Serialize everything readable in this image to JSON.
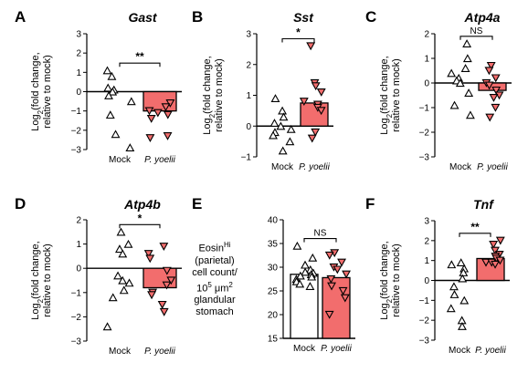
{
  "colors": {
    "treatment_bar": "#f26d6d",
    "mock_bar": "#ffffff",
    "axis": "#000000"
  },
  "chart_data": [
    {
      "panel": "A",
      "type": "bar",
      "title": "Gast",
      "ylabel_lines": [
        "Log2(fold change,",
        "relative to mock)"
      ],
      "ylim": [
        -3,
        3
      ],
      "yticks": [
        -3,
        -2,
        -1,
        0,
        1,
        2,
        3
      ],
      "categories": [
        "Mock",
        "P. yoelii"
      ],
      "bar_values": [
        0,
        -1.0
      ],
      "points": [
        [
          1.1,
          0.8,
          0.2,
          0.1,
          0.0,
          -0.2,
          -0.5,
          -1.2,
          -2.2,
          -2.9
        ],
        [
          -0.6,
          -0.8,
          -1.0,
          -1.1,
          -1.2,
          -1.4,
          -2.3,
          -2.4
        ]
      ],
      "significance": "**"
    },
    {
      "panel": "B",
      "type": "bar",
      "title": "Sst",
      "ylabel_lines": [
        "Log2(fold change,",
        "relative to mock)"
      ],
      "ylim": [
        -1,
        3
      ],
      "yticks": [
        -1,
        0,
        1,
        2,
        3
      ],
      "categories": [
        "Mock",
        "P. yoelii"
      ],
      "bar_values": [
        0,
        0.75
      ],
      "points": [
        [
          0.9,
          0.5,
          0.3,
          0.1,
          0.0,
          -0.1,
          -0.2,
          -0.3,
          -0.5,
          -0.8
        ],
        [
          2.6,
          1.4,
          1.3,
          1.1,
          0.8,
          0.7,
          0.6,
          0.5,
          -0.2,
          -0.4
        ]
      ],
      "significance": "*"
    },
    {
      "panel": "C",
      "type": "bar",
      "title": "Atp4a",
      "ylabel_lines": [
        "Log2(fold change,",
        "relative to mock)"
      ],
      "ylim": [
        -3,
        2
      ],
      "yticks": [
        -3,
        -2,
        -1,
        0,
        1,
        2
      ],
      "categories": [
        "Mock",
        "P. yoelii"
      ],
      "bar_values": [
        0,
        -0.3
      ],
      "points": [
        [
          1.6,
          1.0,
          0.6,
          0.4,
          0.2,
          0.1,
          0.0,
          -0.4,
          -0.9,
          -1.3
        ],
        [
          0.7,
          0.5,
          0.2,
          0.0,
          -0.1,
          -0.3,
          -0.5,
          -0.6,
          -1.0,
          -1.4
        ]
      ],
      "significance": "NS"
    },
    {
      "panel": "D",
      "type": "bar",
      "title": "Atp4b",
      "ylabel_lines": [
        "Log2(fold change,",
        "relative to mock)"
      ],
      "ylim": [
        -3,
        2
      ],
      "yticks": [
        -3,
        -2,
        -1,
        0,
        1,
        2
      ],
      "categories": [
        "Mock",
        "P. yoelii"
      ],
      "bar_values": [
        0,
        -0.8
      ],
      "points": [
        [
          1.5,
          1.0,
          0.8,
          0.6,
          -0.3,
          -0.5,
          -0.6,
          -0.9,
          -1.2,
          -2.4
        ],
        [
          0.9,
          0.6,
          0.4,
          -0.1,
          -0.5,
          -0.7,
          -1.0,
          -1.1,
          -1.5,
          -1.8
        ]
      ],
      "significance": "*"
    },
    {
      "panel": "E",
      "type": "bar",
      "title": "",
      "ylabel_lines": [
        "Eosin",
        "(parietal)",
        "cell count/",
        "10",
        "glandular",
        "stomach"
      ],
      "ylabel_parts": {
        "eosin_sup": "Hi",
        "pow_sup": "5",
        "um_text": " μm",
        "um_sup": "2"
      },
      "ylim": [
        15,
        40
      ],
      "yticks": [
        15,
        20,
        25,
        30,
        35,
        40
      ],
      "categories": [
        "Mock",
        "P. yoelii"
      ],
      "bar_values": [
        28.5,
        27.8
      ],
      "points": [
        [
          34.5,
          32.0,
          30.5,
          29.5,
          29.0,
          28.8,
          28.5,
          28.2,
          28.0,
          27.5,
          27.0,
          26.5,
          26.0
        ],
        [
          33.0,
          32.5,
          31.0,
          30.0,
          29.5,
          28.5,
          27.5,
          26.0,
          25.0,
          23.5,
          20.0
        ]
      ],
      "significance": "NS"
    },
    {
      "panel": "F",
      "type": "bar",
      "title": "Tnf",
      "ylabel_lines": [
        "Log2(fold change,",
        "relative to mock)"
      ],
      "ylim": [
        -3,
        3
      ],
      "yticks": [
        -3,
        -2,
        -1,
        0,
        1,
        2,
        3
      ],
      "categories": [
        "Mock",
        "P. yoelii"
      ],
      "bar_values": [
        0,
        1.1
      ],
      "points": [
        [
          0.9,
          0.8,
          0.6,
          0.4,
          0.1,
          -0.3,
          -0.7,
          -1.0,
          -1.4,
          -2.0,
          -2.3
        ],
        [
          2.0,
          1.8,
          1.5,
          1.3,
          1.2,
          1.1,
          1.0,
          0.9,
          0.9,
          0.8
        ]
      ],
      "significance": "**"
    }
  ]
}
